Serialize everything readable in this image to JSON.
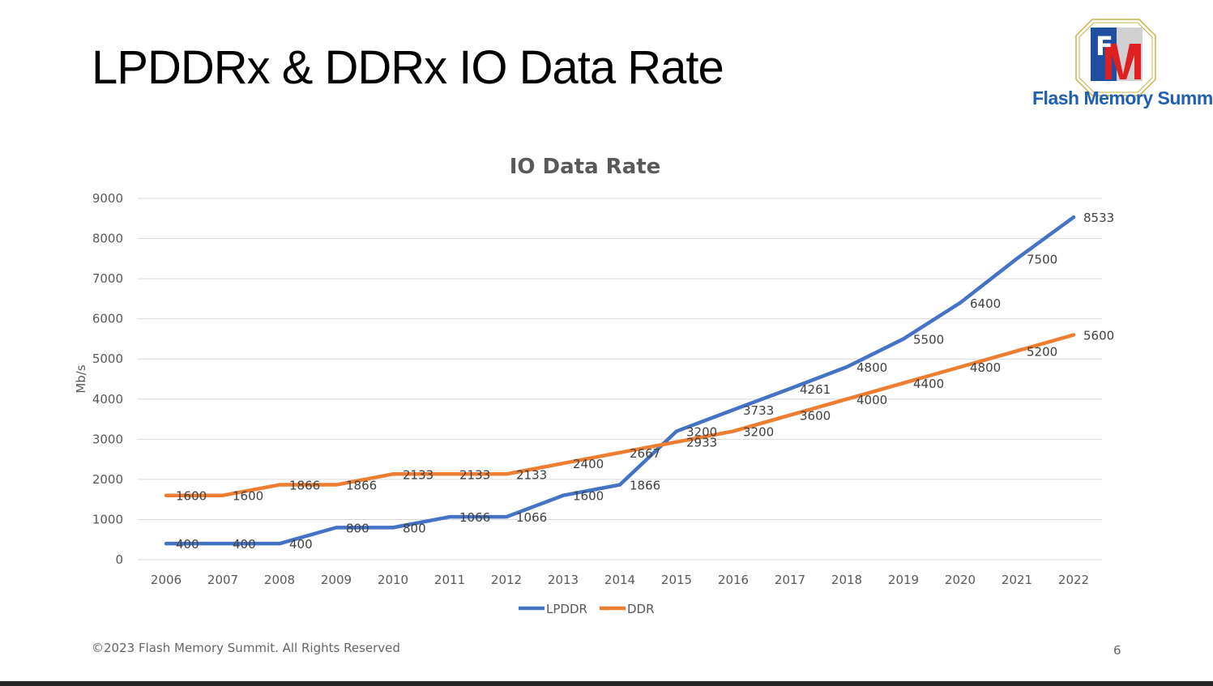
{
  "slide": {
    "title": "LPDDRx & DDRx IO Data Rate",
    "footer": "©2023 Flash Memory Summit. All Rights Reserved",
    "page_number": "6"
  },
  "logo": {
    "text": "Flash Memory Summit",
    "monogram": "FMS",
    "brand_color": "#1f5fb4"
  },
  "chart_data": {
    "type": "line",
    "title": "IO Data Rate",
    "xlabel": "",
    "ylabel": "Mb/s",
    "ylim": [
      0,
      9000
    ],
    "yticks": [
      0,
      1000,
      2000,
      3000,
      4000,
      5000,
      6000,
      7000,
      8000,
      9000
    ],
    "grid": true,
    "legend": "bottom",
    "x": [
      "2006",
      "2007",
      "2008",
      "2009",
      "2010",
      "2011",
      "2012",
      "2013",
      "2014",
      "2015",
      "2016",
      "2017",
      "2018",
      "2019",
      "2020",
      "2021",
      "2022"
    ],
    "series": [
      {
        "name": "LPDDR",
        "color": "#4472c4",
        "values": [
          400,
          400,
          400,
          800,
          800,
          1066,
          1066,
          1600,
          1866,
          3200,
          3733,
          4261,
          4800,
          5500,
          6400,
          7500,
          8533
        ]
      },
      {
        "name": "DDR",
        "color": "#ed7d31",
        "values": [
          1600,
          1600,
          1866,
          1866,
          2133,
          2133,
          2133,
          2400,
          2667,
          2933,
          3200,
          3600,
          4000,
          4400,
          4800,
          5200,
          5600
        ]
      }
    ]
  }
}
